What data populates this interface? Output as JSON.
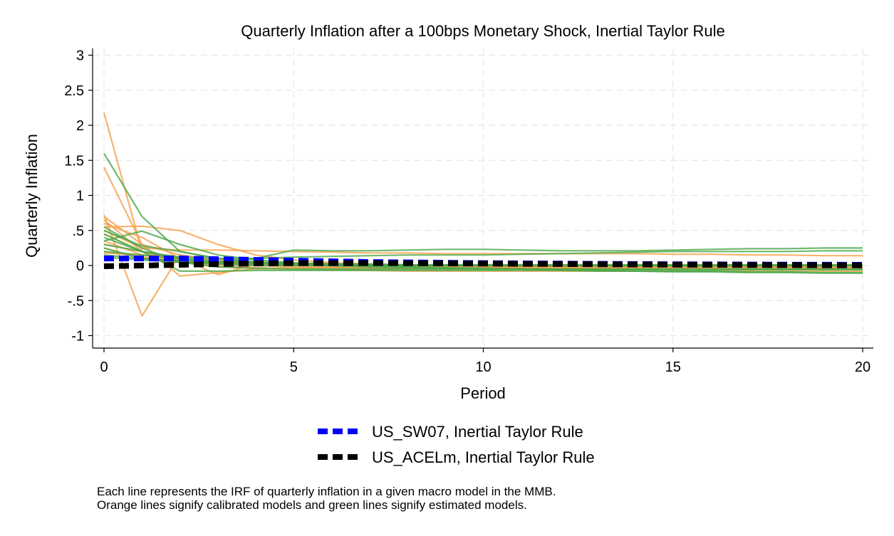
{
  "chart_data": {
    "type": "line",
    "title": "Quarterly Inflation after a 100bps Monetary Shock, Inertial Taylor Rule",
    "xlabel": "Period",
    "ylabel": "Quarterly Inflation",
    "xlim": [
      0,
      20
    ],
    "ylim": [
      -1.1,
      3.1
    ],
    "x_ticks": [
      0,
      5,
      10,
      15,
      20
    ],
    "x_tick_labels": [
      "0",
      "5",
      "10",
      "15",
      "20"
    ],
    "y_ticks": [
      -1,
      -0.5,
      0,
      0.5,
      1,
      1.5,
      2,
      2.5,
      3
    ],
    "y_tick_labels": [
      "-1",
      "-.5",
      "0",
      ".5",
      "1",
      "1.5",
      "2",
      "2.5",
      "3"
    ],
    "grid": true,
    "legend_position": "bottom",
    "x": [
      0,
      1,
      2,
      3,
      4,
      5,
      6,
      7,
      8,
      9,
      10,
      11,
      12,
      13,
      14,
      15,
      16,
      17,
      18,
      19,
      20
    ],
    "series": [
      {
        "name": "US_SW07, Inertial Taylor Rule",
        "color": "#0000ff",
        "style": "dashed-thick",
        "in_legend": true,
        "values": [
          0.1,
          0.1,
          0.1,
          0.09,
          0.08,
          0.07,
          0.06,
          0.05,
          0.045,
          0.04,
          0.035,
          0.03,
          0.027,
          0.024,
          0.021,
          0.018,
          0.016,
          0.014,
          0.012,
          0.011,
          0.01
        ]
      },
      {
        "name": "US_ACELm, Inertial Taylor Rule",
        "color": "#000000",
        "style": "dashed-thick",
        "in_legend": true,
        "values": [
          -0.01,
          0.0,
          0.01,
          0.02,
          0.03,
          0.035,
          0.035,
          0.035,
          0.033,
          0.03,
          0.027,
          0.024,
          0.021,
          0.018,
          0.015,
          0.012,
          0.01,
          0.008,
          0.006,
          0.004,
          0.003
        ]
      }
    ],
    "calibrated_models": {
      "color": "#f5a04a",
      "lines": [
        [
          2.18,
          0.2,
          0.1,
          0.05,
          0.02,
          0.0,
          -0.02,
          -0.03,
          -0.04,
          -0.04,
          -0.04,
          -0.04,
          -0.04,
          -0.04,
          -0.04,
          -0.04,
          -0.04,
          -0.04,
          -0.04,
          -0.04,
          -0.04
        ],
        [
          1.4,
          0.3,
          0.15,
          0.08,
          0.04,
          0.02,
          0.0,
          -0.01,
          -0.02,
          -0.02,
          -0.02,
          -0.02,
          -0.02,
          -0.02,
          -0.02,
          -0.02,
          -0.02,
          -0.02,
          -0.02,
          -0.02,
          -0.02
        ],
        [
          0.72,
          -0.72,
          0.15,
          0.05,
          0.0,
          -0.02,
          -0.03,
          -0.03,
          -0.03,
          -0.03,
          -0.03,
          -0.03,
          -0.03,
          -0.03,
          -0.03,
          -0.03,
          -0.03,
          -0.03,
          -0.03,
          -0.03,
          -0.03
        ],
        [
          0.7,
          0.3,
          -0.15,
          -0.1,
          -0.05,
          -0.03,
          -0.02,
          -0.02,
          -0.02,
          -0.02,
          -0.02,
          -0.02,
          -0.02,
          -0.02,
          -0.02,
          -0.02,
          -0.02,
          -0.02,
          -0.02,
          -0.02,
          -0.02
        ],
        [
          0.55,
          0.56,
          0.5,
          0.3,
          0.15,
          0.08,
          0.04,
          0.02,
          0.01,
          0.0,
          0.0,
          0.0,
          0.0,
          0.0,
          0.0,
          0.0,
          0.0,
          0.0,
          0.0,
          0.0,
          0.0
        ],
        [
          0.6,
          0.4,
          0.1,
          -0.13,
          0.02,
          0.03,
          0.02,
          0.01,
          0.0,
          0.0,
          0.0,
          0.0,
          0.0,
          0.0,
          0.0,
          0.0,
          0.0,
          0.0,
          0.0,
          0.0,
          0.0
        ],
        [
          0.5,
          0.25,
          0.22,
          0.22,
          0.21,
          0.2,
          0.19,
          0.18,
          0.18,
          0.17,
          0.17,
          0.17,
          0.17,
          0.17,
          0.17,
          0.16,
          0.16,
          0.15,
          0.15,
          0.14,
          0.14
        ],
        [
          0.45,
          0.2,
          0.1,
          0.05,
          0.03,
          0.02,
          0.01,
          0.0,
          0.0,
          0.0,
          0.0,
          0.0,
          0.0,
          0.0,
          0.0,
          0.0,
          0.0,
          0.0,
          0.0,
          0.0,
          0.0
        ],
        [
          0.35,
          0.15,
          0.08,
          0.04,
          0.02,
          0.01,
          0.0,
          -0.01,
          -0.01,
          -0.01,
          -0.01,
          -0.01,
          -0.01,
          -0.01,
          -0.01,
          -0.01,
          -0.01,
          -0.01,
          -0.01,
          -0.01,
          -0.01
        ],
        [
          0.3,
          0.2,
          0.05,
          0.0,
          -0.03,
          -0.05,
          -0.06,
          -0.07,
          -0.08,
          -0.08,
          -0.08,
          -0.08,
          -0.08,
          -0.08,
          -0.08,
          -0.08,
          -0.08,
          -0.08,
          -0.08,
          -0.08,
          -0.08
        ],
        [
          0.25,
          0.1,
          0.05,
          0.03,
          0.02,
          0.01,
          0.0,
          0.0,
          0.0,
          0.0,
          0.0,
          0.0,
          0.0,
          0.0,
          0.0,
          0.0,
          0.0,
          0.0,
          0.0,
          0.0,
          0.0
        ],
        [
          0.2,
          0.12,
          0.08,
          0.05,
          0.03,
          0.02,
          0.01,
          0.0,
          -0.01,
          -0.02,
          -0.02,
          -0.02,
          -0.02,
          -0.02,
          -0.02,
          -0.02,
          -0.02,
          -0.02,
          -0.02,
          -0.02,
          -0.02
        ],
        [
          0.18,
          0.15,
          0.1,
          0.06,
          0.04,
          0.03,
          0.02,
          0.01,
          0.0,
          0.0,
          0.0,
          0.0,
          0.0,
          0.0,
          0.0,
          0.0,
          0.0,
          0.0,
          0.0,
          0.0,
          0.0
        ],
        [
          0.65,
          0.2,
          0.05,
          -0.02,
          -0.04,
          -0.05,
          -0.05,
          -0.05,
          -0.05,
          -0.05,
          -0.05,
          -0.05,
          -0.05,
          -0.05,
          -0.05,
          -0.05,
          -0.05,
          -0.05,
          -0.05,
          -0.05,
          -0.05
        ]
      ]
    },
    "estimated_models": {
      "color": "#4aa84a",
      "lines": [
        [
          1.6,
          0.7,
          0.2,
          0.1,
          0.05,
          0.03,
          0.02,
          0.01,
          0.0,
          0.0,
          0.0,
          0.0,
          0.0,
          0.0,
          0.0,
          0.0,
          0.0,
          0.0,
          0.0,
          0.0,
          0.0
        ],
        [
          0.55,
          0.25,
          0.05,
          -0.02,
          -0.04,
          -0.05,
          -0.05,
          -0.05,
          -0.05,
          -0.05,
          -0.05,
          -0.05,
          -0.05,
          -0.05,
          -0.05,
          -0.05,
          -0.05,
          -0.05,
          -0.05,
          -0.05,
          -0.05
        ],
        [
          0.45,
          0.2,
          0.1,
          0.05,
          0.1,
          0.22,
          0.21,
          0.21,
          0.22,
          0.23,
          0.23,
          0.22,
          0.21,
          0.21,
          0.21,
          0.22,
          0.23,
          0.24,
          0.24,
          0.25,
          0.25
        ],
        [
          0.35,
          0.49,
          0.3,
          0.15,
          0.08,
          0.04,
          0.02,
          0.01,
          0.0,
          0.0,
          0.0,
          0.0,
          0.0,
          0.0,
          0.0,
          0.0,
          0.0,
          0.0,
          0.0,
          0.0,
          0.0
        ],
        [
          0.4,
          0.2,
          0.12,
          0.1,
          0.1,
          0.12,
          0.13,
          0.14,
          0.15,
          0.15,
          0.15,
          0.16,
          0.17,
          0.18,
          0.19,
          0.2,
          0.2,
          0.2,
          0.2,
          0.21,
          0.21
        ],
        [
          0.3,
          0.2,
          -0.08,
          -0.08,
          -0.07,
          -0.07,
          -0.07,
          -0.07,
          -0.07,
          -0.07,
          -0.07,
          -0.07,
          -0.07,
          -0.08,
          -0.08,
          -0.08,
          -0.08,
          -0.09,
          -0.09,
          -0.1,
          -0.1
        ],
        [
          0.2,
          0.15,
          0.1,
          0.06,
          0.03,
          0.01,
          0.0,
          -0.01,
          -0.02,
          -0.03,
          -0.04,
          -0.05,
          -0.06,
          -0.07,
          -0.08,
          -0.09,
          -0.09,
          -0.1,
          -0.1,
          -0.11,
          -0.11
        ],
        [
          0.25,
          0.1,
          0.05,
          0.02,
          0.0,
          0.0,
          0.0,
          0.0,
          0.0,
          0.0,
          0.0,
          0.0,
          0.0,
          0.0,
          0.0,
          0.0,
          0.0,
          0.0,
          0.0,
          0.0,
          0.0
        ],
        [
          0.15,
          0.1,
          0.07,
          0.05,
          0.04,
          0.03,
          0.02,
          0.02,
          0.01,
          0.01,
          0.01,
          0.01,
          0.01,
          0.01,
          0.01,
          0.01,
          0.01,
          0.01,
          0.01,
          0.01,
          0.01
        ],
        [
          0.12,
          0.08,
          0.05,
          0.03,
          0.02,
          0.01,
          0.0,
          0.0,
          0.0,
          0.0,
          0.0,
          0.0,
          0.0,
          0.0,
          0.0,
          0.0,
          0.0,
          0.0,
          0.0,
          0.0,
          0.0
        ],
        [
          0.5,
          0.28,
          0.2,
          0.1,
          0.05,
          0.02,
          0.0,
          -0.02,
          -0.03,
          -0.04,
          -0.05,
          -0.05,
          -0.06,
          -0.06,
          -0.06,
          -0.06,
          -0.06,
          -0.06,
          -0.06,
          -0.06,
          -0.06
        ]
      ]
    },
    "notes": [
      "Each line represents the IRF of quarterly inflation in a given macro model in the MMB.",
      "Orange lines signify calibrated models and green lines signify estimated models."
    ]
  }
}
